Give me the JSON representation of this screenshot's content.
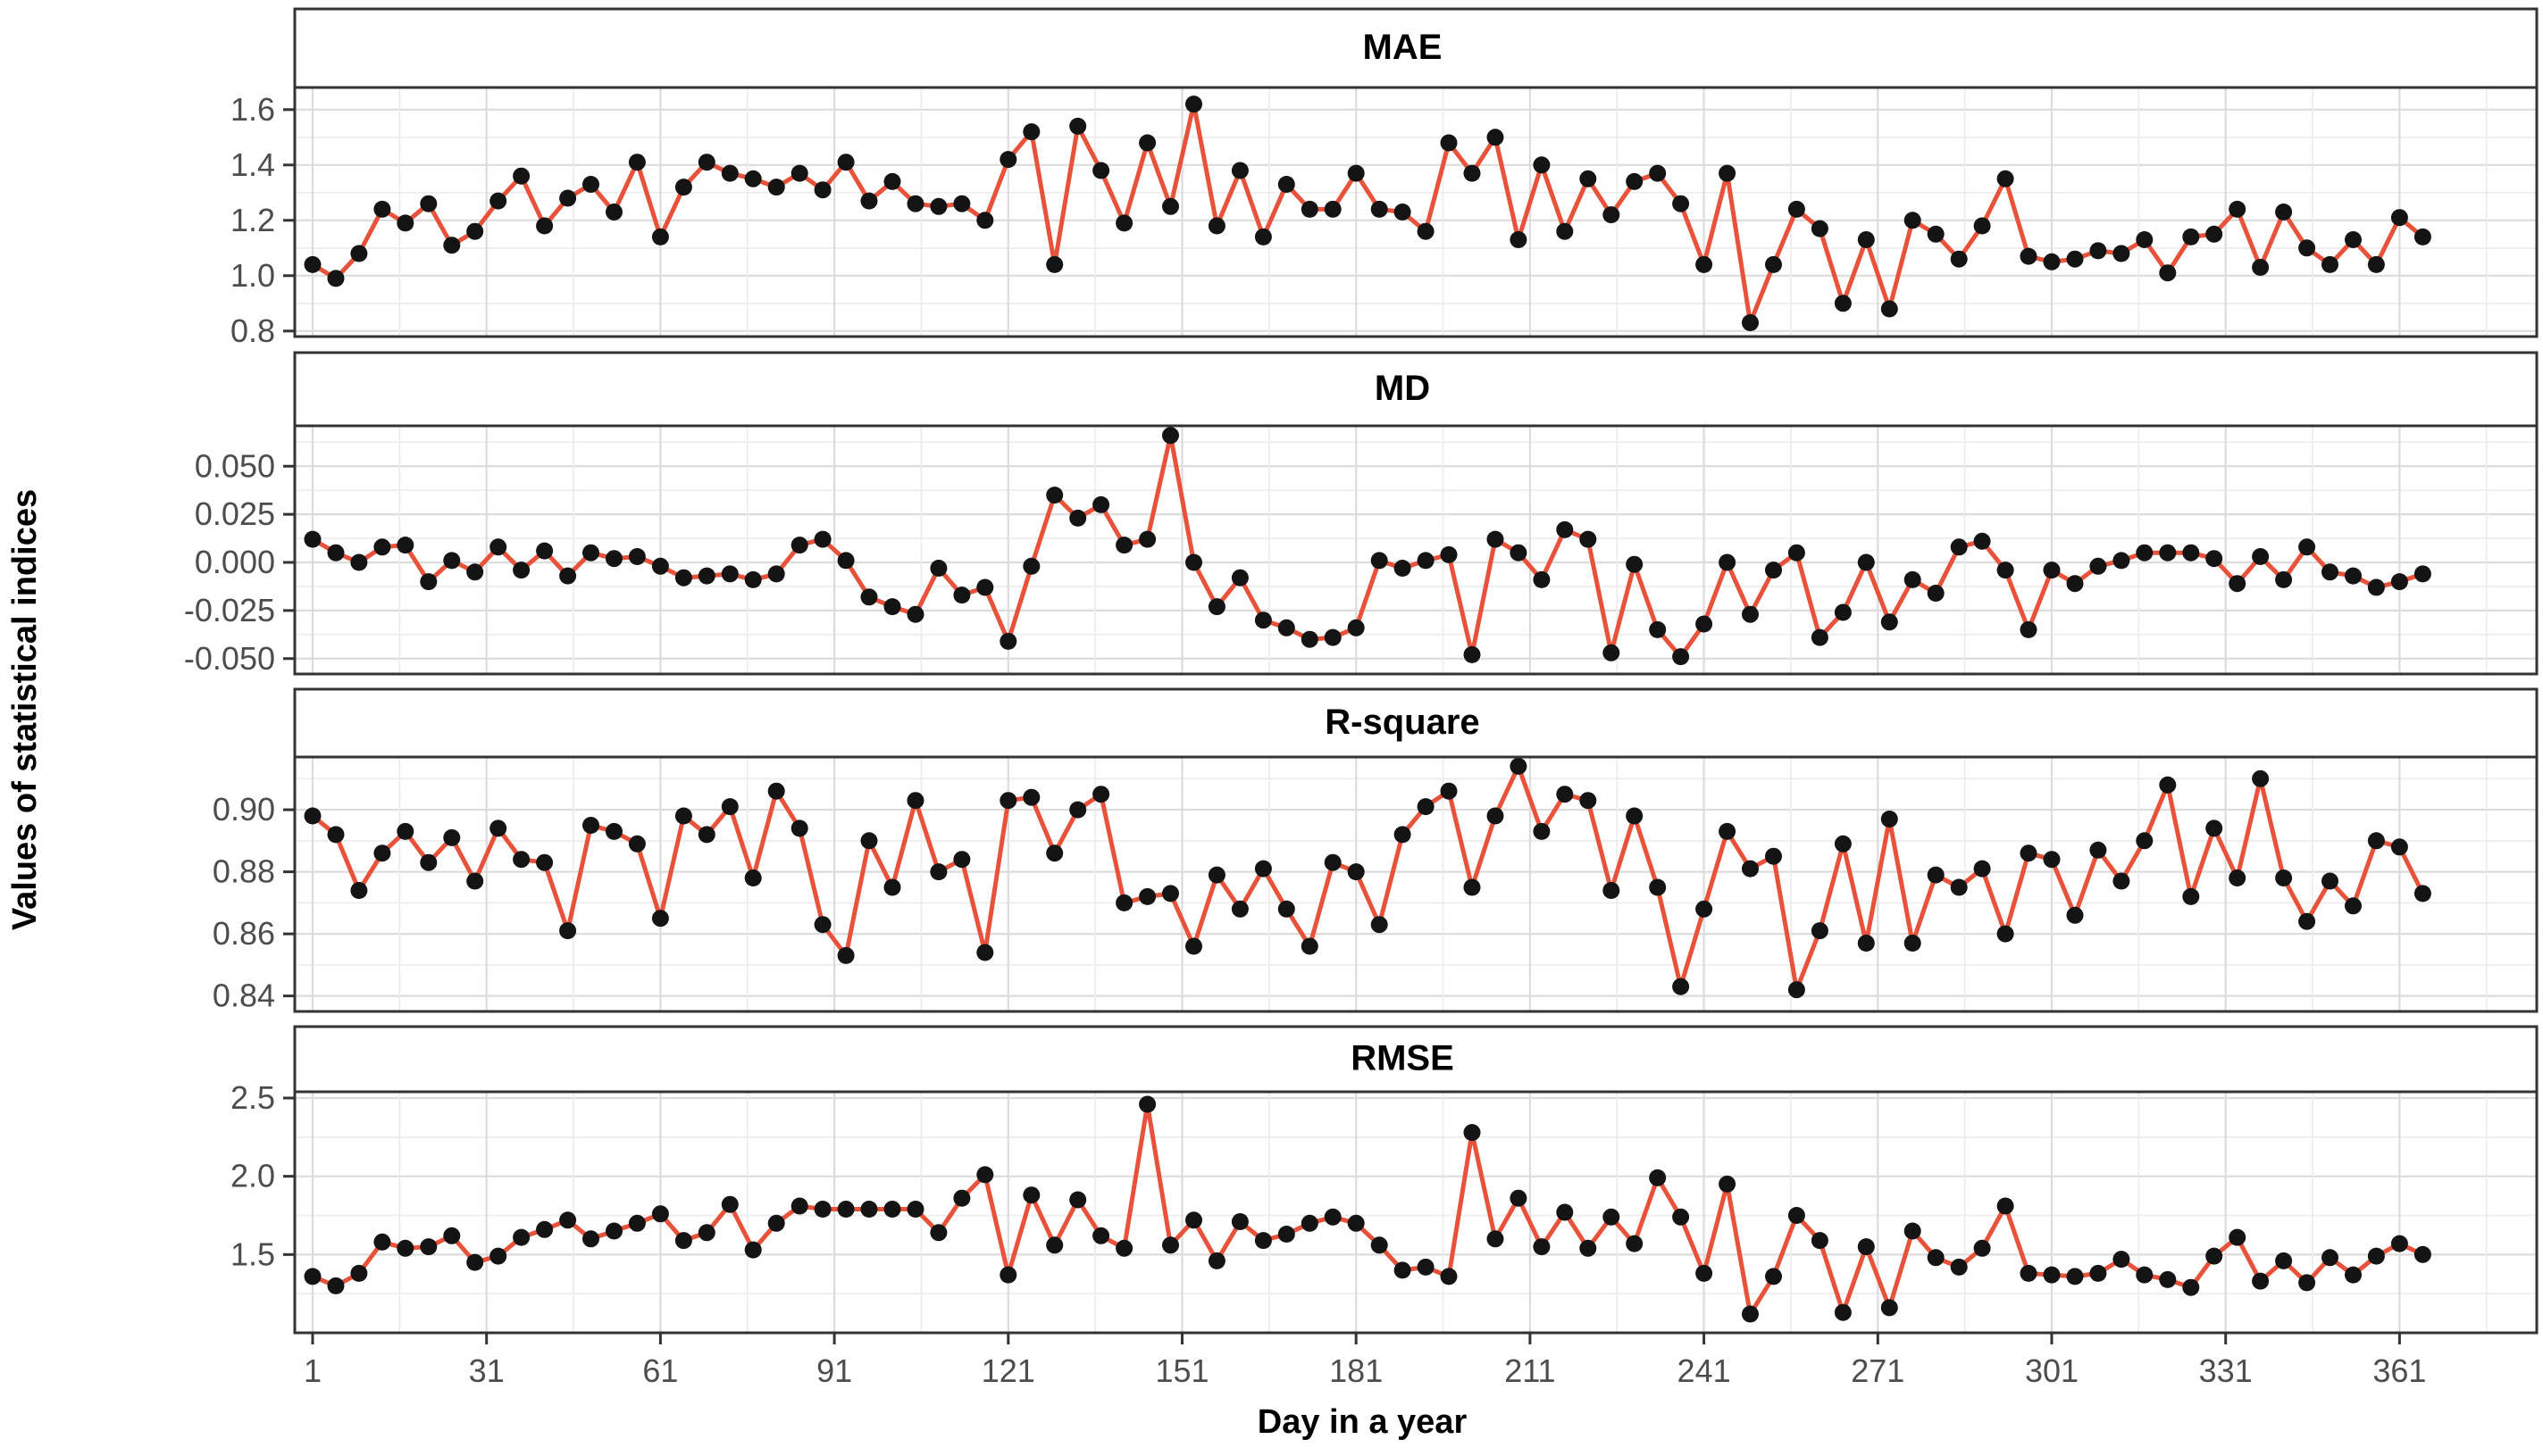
{
  "figure": {
    "ylabel": "Values of statistical indices",
    "xlabel": "Day in a year"
  },
  "colors": {
    "line": "#e8523a",
    "point": "#141414",
    "grid_major": "#dcdcdc",
    "grid_minor": "#ececec",
    "border": "#333333",
    "tick_text": "#4d4d4d",
    "title_text": "#000000",
    "panel_bg": "#ffffff"
  },
  "chart_data": [
    {
      "type": "line",
      "title": "MAE",
      "ylim": [
        0.78,
        1.68
      ],
      "yticks": [
        1.6,
        1.4,
        1.2,
        1.0,
        0.8
      ],
      "ytick_labels": [
        "1.6",
        "1.4",
        "1.2",
        "1.0",
        "0.8"
      ],
      "yminor": [
        1.5,
        1.3,
        1.1,
        0.9
      ],
      "values": [
        1.04,
        0.99,
        1.08,
        1.24,
        1.19,
        1.26,
        1.11,
        1.16,
        1.27,
        1.36,
        1.18,
        1.28,
        1.33,
        1.23,
        1.41,
        1.14,
        1.32,
        1.41,
        1.37,
        1.35,
        1.32,
        1.37,
        1.31,
        1.41,
        1.27,
        1.34,
        1.26,
        1.25,
        1.26,
        1.2,
        1.42,
        1.52,
        1.04,
        1.54,
        1.38,
        1.19,
        1.48,
        1.25,
        1.62,
        1.18,
        1.38,
        1.14,
        1.33,
        1.24,
        1.24,
        1.37,
        1.24,
        1.23,
        1.16,
        1.48,
        1.37,
        1.5,
        1.13,
        1.4,
        1.16,
        1.35,
        1.22,
        1.34,
        1.37,
        1.26,
        1.04,
        1.37,
        0.83,
        1.04,
        1.24,
        1.17,
        0.9,
        1.13,
        0.88,
        1.2,
        1.15,
        1.06,
        1.18,
        1.35,
        1.07,
        1.05,
        1.06,
        1.09,
        1.08,
        1.13,
        1.01,
        1.14,
        1.15,
        1.24,
        1.03,
        1.23,
        1.1,
        1.04,
        1.13,
        1.04,
        1.21,
        1.14
      ]
    },
    {
      "type": "line",
      "title": "MD",
      "ylim": [
        -0.058,
        0.071
      ],
      "yticks": [
        0.05,
        0.025,
        0.0,
        -0.025,
        -0.05
      ],
      "ytick_labels": [
        "0.050",
        "0.025",
        "0.000",
        "-0.025",
        "-0.050"
      ],
      "yminor": [
        0.0625,
        0.0375,
        0.0125,
        -0.0125,
        -0.0375
      ],
      "values": [
        0.012,
        0.005,
        0.0,
        0.008,
        0.009,
        -0.01,
        0.001,
        -0.005,
        0.008,
        -0.004,
        0.006,
        -0.007,
        0.005,
        0.002,
        0.003,
        -0.002,
        -0.008,
        -0.007,
        -0.006,
        -0.009,
        -0.006,
        0.009,
        0.012,
        0.001,
        -0.018,
        -0.023,
        -0.027,
        -0.003,
        -0.017,
        -0.013,
        -0.041,
        -0.002,
        0.035,
        0.023,
        0.03,
        0.009,
        0.012,
        0.066,
        0.0,
        -0.023,
        -0.008,
        -0.03,
        -0.034,
        -0.04,
        -0.039,
        -0.034,
        0.001,
        -0.003,
        0.001,
        0.004,
        -0.048,
        0.012,
        0.005,
        -0.009,
        0.017,
        0.012,
        -0.047,
        -0.001,
        -0.035,
        -0.049,
        -0.032,
        0.0,
        -0.027,
        -0.004,
        0.005,
        -0.039,
        -0.026,
        0.0,
        -0.031,
        -0.009,
        -0.016,
        0.008,
        0.011,
        -0.004,
        -0.035,
        -0.004,
        -0.011,
        -0.002,
        0.001,
        0.005,
        0.005,
        0.005,
        0.002,
        -0.011,
        0.003,
        -0.009,
        0.008,
        -0.005,
        -0.007,
        -0.013,
        -0.01,
        -0.006
      ]
    },
    {
      "type": "line",
      "title": "R-square",
      "ylim": [
        0.835,
        0.917
      ],
      "yticks": [
        0.9,
        0.88,
        0.86,
        0.84
      ],
      "ytick_labels": [
        "0.90",
        "0.88",
        "0.86",
        "0.84"
      ],
      "yminor": [
        0.91,
        0.89,
        0.87,
        0.85
      ],
      "values": [
        0.898,
        0.892,
        0.874,
        0.886,
        0.893,
        0.883,
        0.891,
        0.877,
        0.894,
        0.884,
        0.883,
        0.861,
        0.895,
        0.893,
        0.889,
        0.865,
        0.898,
        0.892,
        0.901,
        0.878,
        0.906,
        0.894,
        0.863,
        0.853,
        0.89,
        0.875,
        0.903,
        0.88,
        0.884,
        0.854,
        0.903,
        0.904,
        0.886,
        0.9,
        0.905,
        0.87,
        0.872,
        0.873,
        0.856,
        0.879,
        0.868,
        0.881,
        0.868,
        0.856,
        0.883,
        0.88,
        0.863,
        0.892,
        0.901,
        0.906,
        0.875,
        0.898,
        0.914,
        0.893,
        0.905,
        0.903,
        0.874,
        0.898,
        0.875,
        0.843,
        0.868,
        0.893,
        0.881,
        0.885,
        0.842,
        0.861,
        0.889,
        0.857,
        0.897,
        0.857,
        0.879,
        0.875,
        0.881,
        0.86,
        0.886,
        0.884,
        0.866,
        0.887,
        0.877,
        0.89,
        0.908,
        0.872,
        0.894,
        0.878,
        0.91,
        0.878,
        0.864,
        0.877,
        0.869,
        0.89,
        0.888,
        0.873
      ]
    },
    {
      "type": "line",
      "title": "RMSE",
      "ylim": [
        1.0,
        2.54
      ],
      "yticks": [
        2.5,
        2.0,
        1.5
      ],
      "ytick_labels": [
        "2.5",
        "2.0",
        "1.5"
      ],
      "yminor": [
        2.25,
        1.75,
        1.25
      ],
      "values": [
        1.36,
        1.3,
        1.38,
        1.58,
        1.54,
        1.55,
        1.62,
        1.45,
        1.49,
        1.61,
        1.66,
        1.72,
        1.6,
        1.65,
        1.7,
        1.76,
        1.59,
        1.64,
        1.82,
        1.53,
        1.7,
        1.81,
        1.79,
        1.79,
        1.79,
        1.79,
        1.79,
        1.64,
        1.86,
        2.01,
        1.37,
        1.88,
        1.56,
        1.85,
        1.62,
        1.54,
        2.46,
        1.56,
        1.72,
        1.46,
        1.71,
        1.59,
        1.63,
        1.7,
        1.74,
        1.7,
        1.56,
        1.4,
        1.42,
        1.36,
        2.28,
        1.6,
        1.86,
        1.55,
        1.77,
        1.54,
        1.74,
        1.57,
        1.99,
        1.74,
        1.38,
        1.95,
        1.12,
        1.36,
        1.75,
        1.59,
        1.13,
        1.55,
        1.16,
        1.65,
        1.48,
        1.42,
        1.54,
        1.81,
        1.38,
        1.37,
        1.36,
        1.38,
        1.47,
        1.37,
        1.34,
        1.29,
        1.49,
        1.61,
        1.33,
        1.46,
        1.32,
        1.48,
        1.37,
        1.49,
        1.57,
        1.5
      ]
    }
  ],
  "x_axis": {
    "day_start": 1,
    "day_step": 4,
    "ticks": [
      1,
      31,
      61,
      91,
      121,
      151,
      181,
      211,
      241,
      271,
      301,
      331,
      361
    ],
    "tick_labels": [
      "1",
      "31",
      "61",
      "91",
      "121",
      "151",
      "181",
      "211",
      "241",
      "271",
      "301",
      "331",
      "361"
    ],
    "minor": [
      16,
      46,
      76,
      106,
      136,
      166,
      196,
      226,
      256,
      286,
      316,
      346,
      376
    ]
  }
}
